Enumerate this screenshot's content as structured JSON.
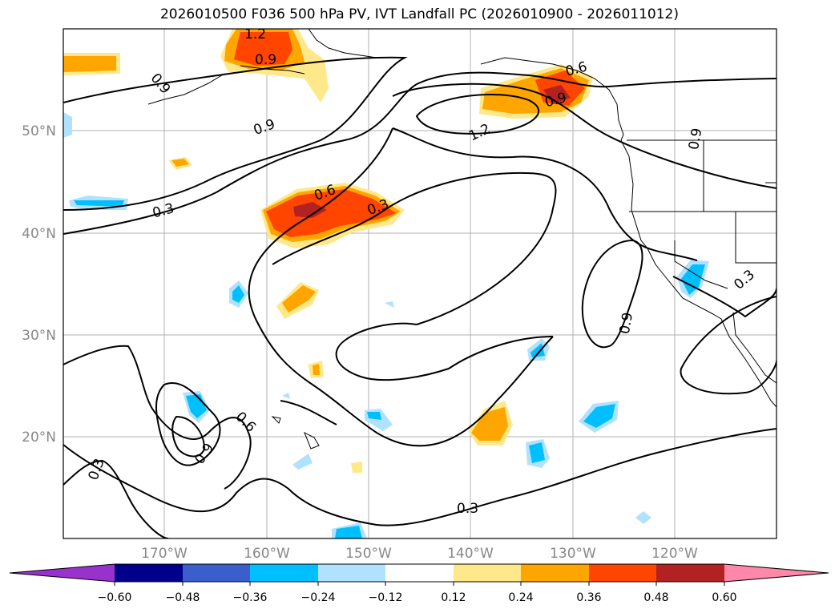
{
  "title": "2026010500 F036 500 hPa PV, IVT Landfall PC (2026010900 - 2026011012)",
  "lat_labels": [
    "50°N",
    "40°N",
    "30°N",
    "20°N"
  ],
  "lon_labels": [
    "170°W",
    "160°W",
    "150°W",
    "140°W",
    "130°W",
    "120°W"
  ],
  "contour_labels": [
    "1.2",
    "0.9",
    "0.9",
    "0.9",
    "0.3",
    "0.6",
    "0.3",
    "1.2",
    "0.6",
    "0.9",
    "0.9",
    "0.9",
    "0.3",
    "0.6",
    "0.9",
    "0.3",
    "0.3"
  ],
  "colorbar": {
    "ticks": [
      "−0.60",
      "−0.48",
      "−0.36",
      "−0.24",
      "−0.12",
      "0.12",
      "0.24",
      "0.36",
      "0.48",
      "0.60"
    ],
    "colors": [
      "#9932cc",
      "#00008b",
      "#3a5fcd",
      "#00bfff",
      "#b0e2ff",
      "#ffffff",
      "#ffe88a",
      "#ffa500",
      "#ff4500",
      "#b22222",
      "#ff88aa"
    ]
  }
}
